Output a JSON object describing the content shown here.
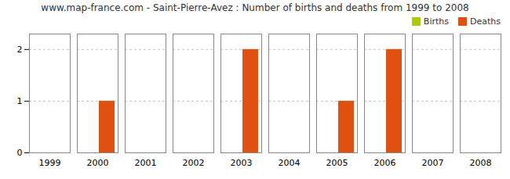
{
  "chart_data": {
    "type": "bar",
    "title": "www.map-france.com - Saint-Pierre-Avez : Number of births and deaths from 1999 to 2008",
    "categories": [
      "1999",
      "2000",
      "2001",
      "2002",
      "2003",
      "2004",
      "2005",
      "2006",
      "2007",
      "2008"
    ],
    "series": [
      {
        "name": "Births",
        "color": "#aacc00",
        "values": [
          0,
          0,
          0,
          0,
          0,
          0,
          0,
          0,
          0,
          0
        ]
      },
      {
        "name": "Deaths",
        "color": "#e05010",
        "values": [
          0,
          1,
          0,
          0,
          2,
          0,
          1,
          2,
          0,
          0
        ]
      }
    ],
    "ylim": [
      0,
      2.3
    ],
    "yticks": [
      0,
      1,
      2
    ],
    "grid": true,
    "legend": "upper right"
  }
}
